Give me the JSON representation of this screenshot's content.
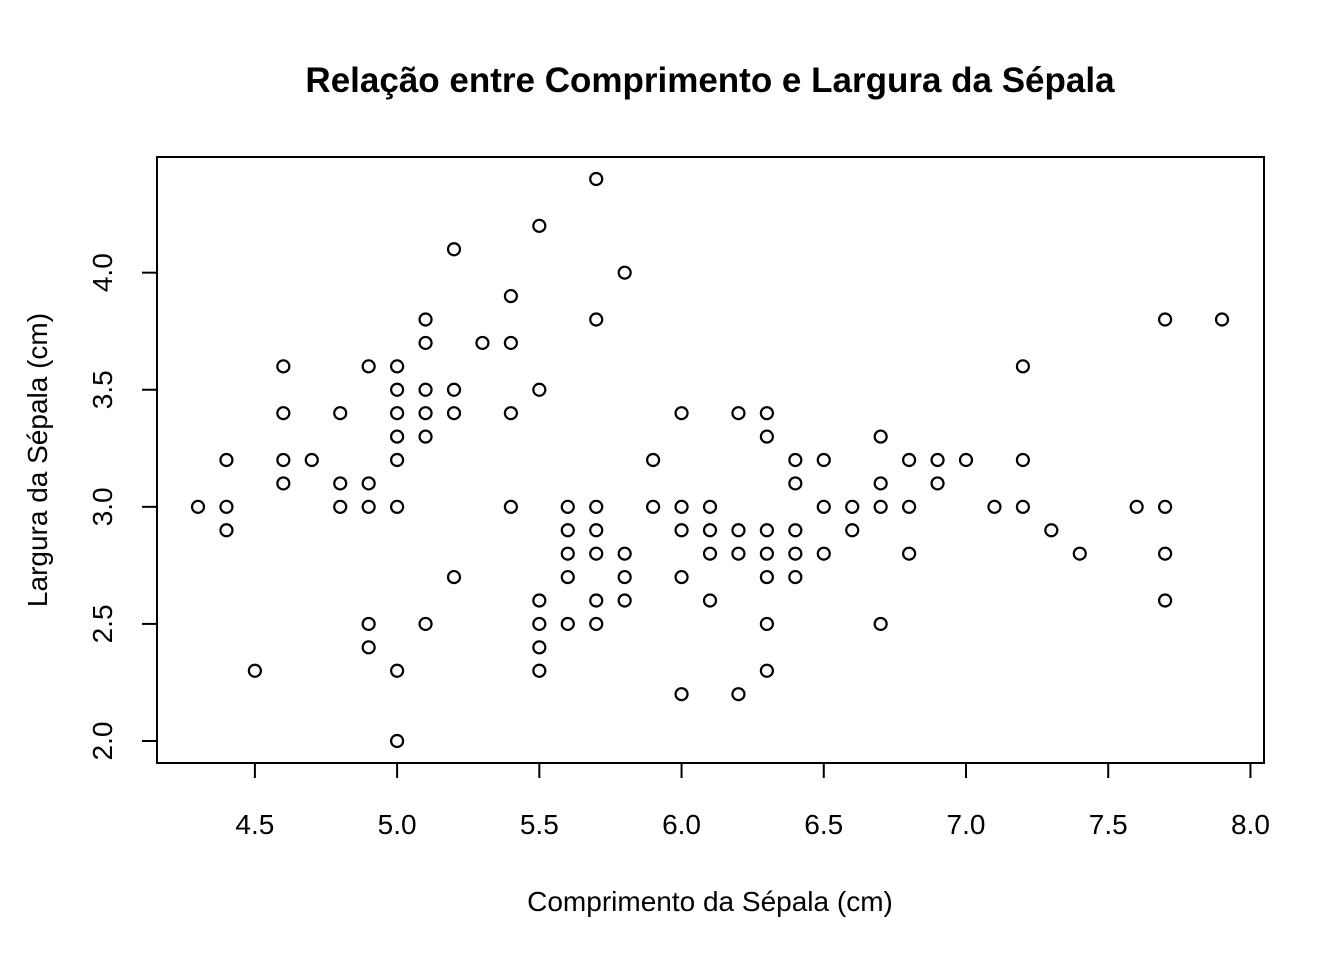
{
  "chart_data": {
    "type": "scatter",
    "title": "Relação entre Comprimento e Largura da Sépala",
    "xlabel": "Comprimento da Sépala (cm)",
    "ylabel": "Largura da Sépala (cm)",
    "xlim": [
      4.3,
      7.9
    ],
    "ylim": [
      2.0,
      4.4
    ],
    "xticks": [
      "4.5",
      "5.0",
      "5.5",
      "6.0",
      "6.5",
      "7.0",
      "7.5",
      "8.0"
    ],
    "yticks": [
      "2.0",
      "2.5",
      "3.0",
      "3.5",
      "4.0"
    ],
    "grid": false,
    "marker": "open-circle",
    "points": [
      [
        4.3,
        3.0
      ],
      [
        4.4,
        3.2
      ],
      [
        4.4,
        3.0
      ],
      [
        4.4,
        2.9
      ],
      [
        4.5,
        2.3
      ],
      [
        4.6,
        3.6
      ],
      [
        4.6,
        3.4
      ],
      [
        4.6,
        3.2
      ],
      [
        4.6,
        3.1
      ],
      [
        4.7,
        3.2
      ],
      [
        4.8,
        3.4
      ],
      [
        4.8,
        3.1
      ],
      [
        4.8,
        3.0
      ],
      [
        4.9,
        3.6
      ],
      [
        4.9,
        3.1
      ],
      [
        4.9,
        3.0
      ],
      [
        4.9,
        2.5
      ],
      [
        4.9,
        2.4
      ],
      [
        5.0,
        3.6
      ],
      [
        5.0,
        3.5
      ],
      [
        5.0,
        3.4
      ],
      [
        5.0,
        3.3
      ],
      [
        5.0,
        3.2
      ],
      [
        5.0,
        3.0
      ],
      [
        5.0,
        2.3
      ],
      [
        5.0,
        2.0
      ],
      [
        5.1,
        3.8
      ],
      [
        5.1,
        3.7
      ],
      [
        5.1,
        3.5
      ],
      [
        5.1,
        3.4
      ],
      [
        5.1,
        3.3
      ],
      [
        5.1,
        2.5
      ],
      [
        5.2,
        4.1
      ],
      [
        5.2,
        3.5
      ],
      [
        5.2,
        3.4
      ],
      [
        5.2,
        2.7
      ],
      [
        5.3,
        3.7
      ],
      [
        5.4,
        3.9
      ],
      [
        5.4,
        3.7
      ],
      [
        5.4,
        3.4
      ],
      [
        5.4,
        3.0
      ],
      [
        5.5,
        4.2
      ],
      [
        5.5,
        3.5
      ],
      [
        5.5,
        2.6
      ],
      [
        5.5,
        2.5
      ],
      [
        5.5,
        2.4
      ],
      [
        5.5,
        2.3
      ],
      [
        5.6,
        3.0
      ],
      [
        5.6,
        2.9
      ],
      [
        5.6,
        2.8
      ],
      [
        5.6,
        2.7
      ],
      [
        5.6,
        2.5
      ],
      [
        5.7,
        4.4
      ],
      [
        5.7,
        3.8
      ],
      [
        5.7,
        3.0
      ],
      [
        5.7,
        2.9
      ],
      [
        5.7,
        2.8
      ],
      [
        5.7,
        2.6
      ],
      [
        5.7,
        2.5
      ],
      [
        5.8,
        4.0
      ],
      [
        5.8,
        2.8
      ],
      [
        5.8,
        2.7
      ],
      [
        5.8,
        2.6
      ],
      [
        5.9,
        3.2
      ],
      [
        5.9,
        3.0
      ],
      [
        6.0,
        3.4
      ],
      [
        6.0,
        3.0
      ],
      [
        6.0,
        2.9
      ],
      [
        6.0,
        2.7
      ],
      [
        6.0,
        2.2
      ],
      [
        6.1,
        3.0
      ],
      [
        6.1,
        2.9
      ],
      [
        6.1,
        2.8
      ],
      [
        6.1,
        2.6
      ],
      [
        6.2,
        3.4
      ],
      [
        6.2,
        2.9
      ],
      [
        6.2,
        2.8
      ],
      [
        6.2,
        2.2
      ],
      [
        6.3,
        3.4
      ],
      [
        6.3,
        3.3
      ],
      [
        6.3,
        2.9
      ],
      [
        6.3,
        2.8
      ],
      [
        6.3,
        2.7
      ],
      [
        6.3,
        2.5
      ],
      [
        6.3,
        2.3
      ],
      [
        6.4,
        3.2
      ],
      [
        6.4,
        3.1
      ],
      [
        6.4,
        2.9
      ],
      [
        6.4,
        2.8
      ],
      [
        6.4,
        2.7
      ],
      [
        6.5,
        3.2
      ],
      [
        6.5,
        3.0
      ],
      [
        6.5,
        2.8
      ],
      [
        6.6,
        3.0
      ],
      [
        6.6,
        2.9
      ],
      [
        6.7,
        3.3
      ],
      [
        6.7,
        3.1
      ],
      [
        6.7,
        3.0
      ],
      [
        6.7,
        2.5
      ],
      [
        6.8,
        3.2
      ],
      [
        6.8,
        3.0
      ],
      [
        6.8,
        2.8
      ],
      [
        6.9,
        3.2
      ],
      [
        6.9,
        3.1
      ],
      [
        7.0,
        3.2
      ],
      [
        7.1,
        3.0
      ],
      [
        7.2,
        3.6
      ],
      [
        7.2,
        3.2
      ],
      [
        7.2,
        3.0
      ],
      [
        7.3,
        2.9
      ],
      [
        7.4,
        2.8
      ],
      [
        7.6,
        3.0
      ],
      [
        7.7,
        3.8
      ],
      [
        7.7,
        3.0
      ],
      [
        7.7,
        2.8
      ],
      [
        7.7,
        2.6
      ],
      [
        7.9,
        3.8
      ]
    ]
  }
}
